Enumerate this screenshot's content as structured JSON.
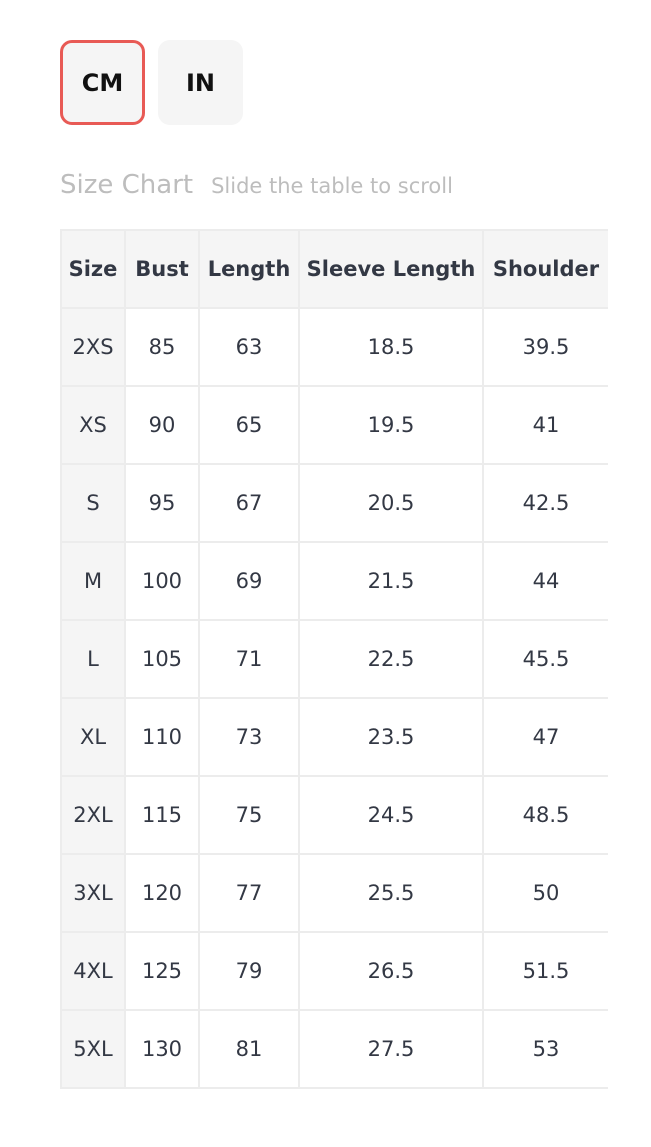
{
  "units": [
    {
      "label": "CM",
      "active": true
    },
    {
      "label": "IN",
      "active": false
    }
  ],
  "heading": {
    "title": "Size Chart",
    "subtitle": "Slide the table to scroll"
  },
  "table": {
    "columns": [
      "Size",
      "Bust",
      "Length",
      "Sleeve Length",
      "Shoulder"
    ],
    "rows": [
      [
        "2XS",
        "85",
        "63",
        "18.5",
        "39.5"
      ],
      [
        "XS",
        "90",
        "65",
        "19.5",
        "41"
      ],
      [
        "S",
        "95",
        "67",
        "20.5",
        "42.5"
      ],
      [
        "M",
        "100",
        "69",
        "21.5",
        "44"
      ],
      [
        "L",
        "105",
        "71",
        "22.5",
        "45.5"
      ],
      [
        "XL",
        "110",
        "73",
        "23.5",
        "47"
      ],
      [
        "2XL",
        "115",
        "75",
        "24.5",
        "48.5"
      ],
      [
        "3XL",
        "120",
        "77",
        "25.5",
        "50"
      ],
      [
        "4XL",
        "125",
        "79",
        "26.5",
        "51.5"
      ],
      [
        "5XL",
        "130",
        "81",
        "27.5",
        "53"
      ]
    ]
  }
}
